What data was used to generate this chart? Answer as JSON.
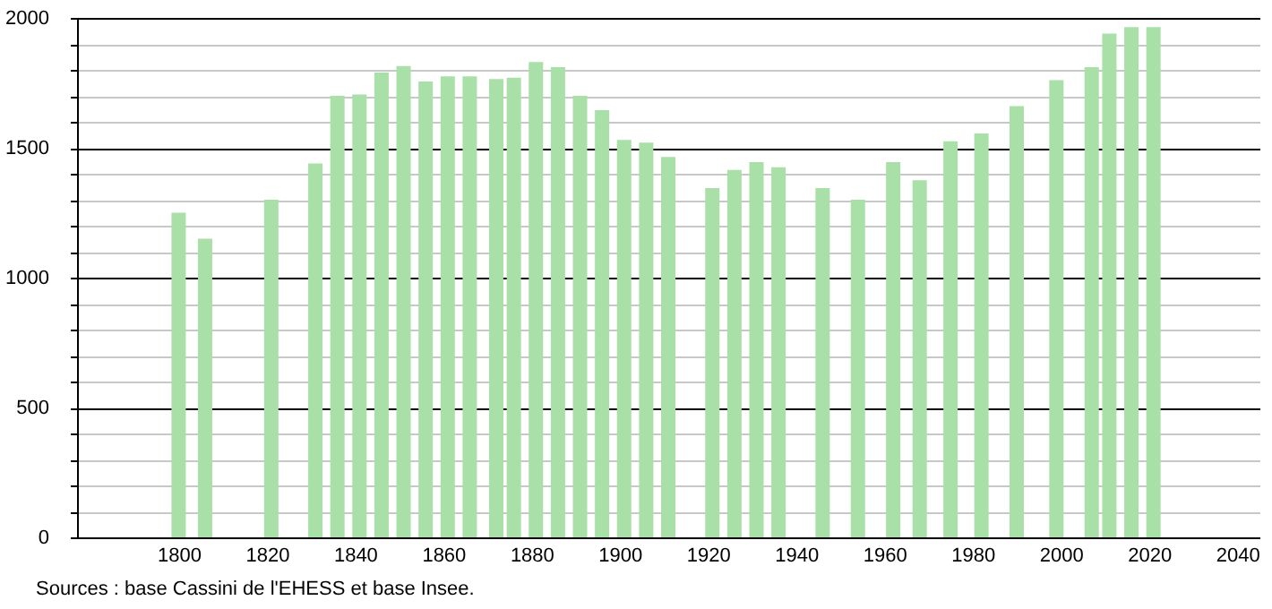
{
  "chart_data": {
    "type": "bar",
    "x": [
      1800,
      1806,
      1821,
      1831,
      1836,
      1841,
      1846,
      1851,
      1856,
      1861,
      1866,
      1872,
      1876,
      1881,
      1886,
      1891,
      1896,
      1901,
      1906,
      1911,
      1921,
      1926,
      1931,
      1936,
      1946,
      1954,
      1962,
      1968,
      1975,
      1982,
      1990,
      1999,
      2007,
      2011,
      2016,
      2021
    ],
    "values": [
      1250,
      1150,
      1300,
      1440,
      1700,
      1705,
      1790,
      1815,
      1755,
      1775,
      1775,
      1765,
      1770,
      1830,
      1810,
      1700,
      1645,
      1530,
      1520,
      1465,
      1345,
      1415,
      1445,
      1425,
      1345,
      1300,
      1445,
      1375,
      1525,
      1555,
      1660,
      1760,
      1810,
      1940,
      1965,
      1965
    ],
    "color": "#a8e0a8",
    "xlim": [
      1779,
      2043
    ],
    "xticks": [
      1800,
      1820,
      1840,
      1860,
      1880,
      1900,
      1920,
      1940,
      1960,
      1980,
      2000,
      2020,
      2040
    ],
    "ylim": [
      0,
      2000
    ],
    "yticks": [
      0,
      {
        "value": 100,
        "label": null
      },
      {
        "value": 200,
        "label": null
      },
      {
        "value": 300,
        "label": null
      },
      {
        "value": 400,
        "label": null
      },
      500,
      {
        "value": 600,
        "label": null
      },
      {
        "value": 700,
        "label": null
      },
      {
        "value": 800,
        "label": null
      },
      {
        "value": 900,
        "label": null
      },
      1000,
      {
        "value": 1100,
        "label": null
      },
      {
        "value": 1200,
        "label": null
      },
      {
        "value": 1300,
        "label": null
      },
      {
        "value": 1400,
        "label": null
      },
      1500,
      {
        "value": 1600,
        "label": null
      },
      {
        "value": 1700,
        "label": null
      },
      {
        "value": 1800,
        "label": null
      },
      {
        "value": 1900,
        "label": null
      },
      2000
    ],
    "grid": "y",
    "annotations": [
      "Sources : base Cassini de l'EHESS et base Insee."
    ]
  }
}
